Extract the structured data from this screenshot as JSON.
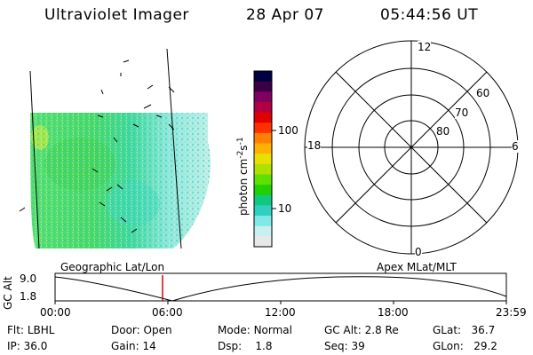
{
  "header": {
    "instrument": "Ultraviolet Imager",
    "date": "28 Apr 07",
    "time": "05:44:56 UT"
  },
  "colorbar": {
    "label": "photon cm",
    "label_exp1": "-2",
    "label_s": "s",
    "label_exp2": "-1",
    "ticks": [
      "100",
      "10"
    ],
    "colors": [
      "#000040",
      "#3a0046",
      "#800060",
      "#b00040",
      "#e00000",
      "#ff3000",
      "#ff8000",
      "#ffb000",
      "#e8e000",
      "#b0e000",
      "#60e000",
      "#20d000",
      "#10c880",
      "#30d0c0",
      "#80e8e8",
      "#c8f0f0",
      "#e8e8e8"
    ]
  },
  "polar": {
    "mlt_labels": {
      "top": "12",
      "right": "6",
      "bottom": "0",
      "left": "18"
    },
    "lat_labels": [
      "60",
      "70",
      "80"
    ]
  },
  "timeline": {
    "left_label": "Geographic Lat/Lon",
    "right_label": "Apex MLat/MLT",
    "axis_title": "GC Alt",
    "ytick_top": "9.0",
    "ytick_bottom": "1.8",
    "xticks": [
      "00:00",
      "06:00",
      "12:00",
      "18:00",
      "23:59"
    ],
    "marker_color": "#dd0000"
  },
  "info": {
    "flt_label": "Flt:",
    "flt_value": "LBHL",
    "ip_label": "IP:",
    "ip_value": "36.0",
    "door_label": "Door:",
    "door_value": "Open",
    "gain_label": "Gain:",
    "gain_value": "14",
    "mode_label": "Mode:",
    "mode_value": "Normal",
    "dsp_label": "Dsp:",
    "dsp_value": "1.8",
    "gcalt_label": "GC Alt:",
    "gcalt_value": "2.8 Re",
    "seq_label": "Seq:",
    "seq_value": "39",
    "glat_label": "GLat:",
    "glat_value": "36.7",
    "glon_label": "GLon:",
    "glon_value": "29.2"
  },
  "image_palette": {
    "green": "#40d860",
    "lightgreen": "#70e880",
    "cyan": "#40d8c0",
    "lightcyan": "#b8f0f0",
    "yellowgreen": "#a8e840"
  }
}
